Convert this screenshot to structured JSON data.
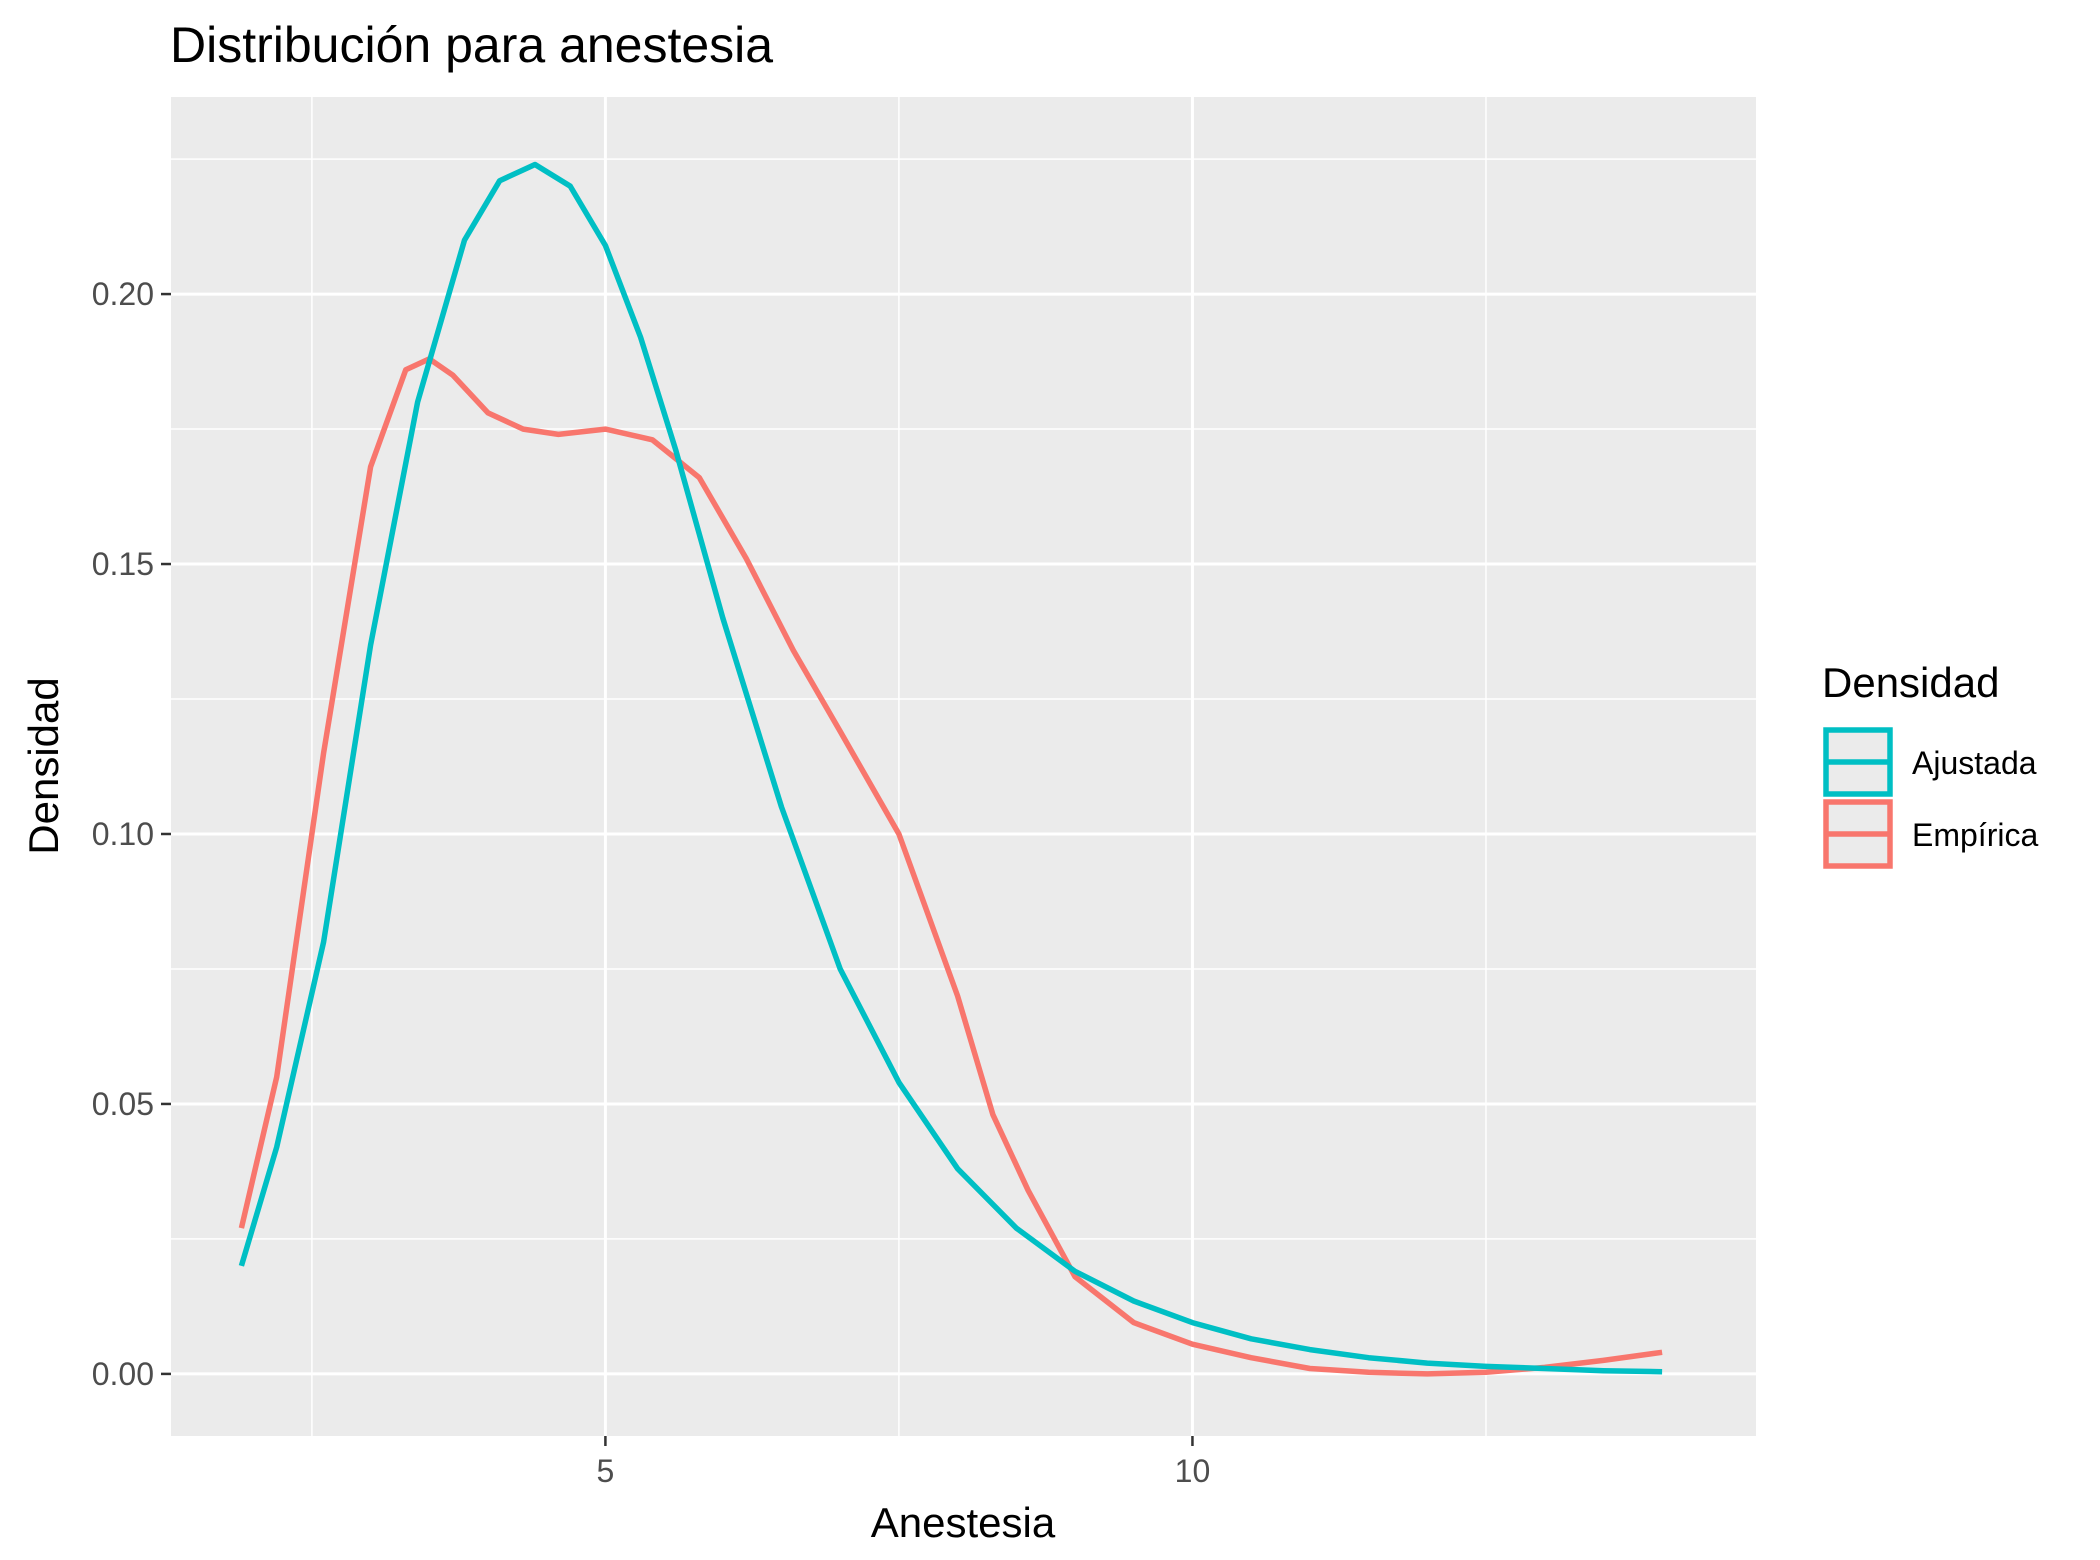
{
  "chart_data": {
    "type": "line",
    "title": "Distribución para anestesia",
    "xlabel": "Anestesia",
    "ylabel": "Densidad",
    "xlim": [
      1.3,
      14.8
    ],
    "ylim": [
      -0.0115,
      0.2365
    ],
    "x_ticks": [
      5,
      10
    ],
    "x_tick_labels": [
      "5",
      "10"
    ],
    "x_minor_ticks": [
      2.5,
      7.5,
      12.5
    ],
    "y_ticks": [
      0.0,
      0.05,
      0.1,
      0.15,
      0.2
    ],
    "y_tick_labels": [
      "0.00",
      "0.05",
      "0.10",
      "0.15",
      "0.20"
    ],
    "y_minor_ticks": [
      0.025,
      0.075,
      0.125,
      0.175,
      0.225
    ],
    "grid": true,
    "legend": {
      "title": "Densidad",
      "position": "right",
      "entries": [
        "Ajustada",
        "Empírica"
      ]
    },
    "series": [
      {
        "name": "Ajustada",
        "color": "#00BFC4",
        "x": [
          1.9,
          2.2,
          2.6,
          3.0,
          3.4,
          3.8,
          4.1,
          4.4,
          4.7,
          5.0,
          5.3,
          5.6,
          6.0,
          6.5,
          7.0,
          7.5,
          8.0,
          8.5,
          9.0,
          9.5,
          10.0,
          10.5,
          11.0,
          11.5,
          12.0,
          12.5,
          13.0,
          13.5,
          14.0
        ],
        "values": [
          0.02,
          0.042,
          0.08,
          0.135,
          0.18,
          0.21,
          0.221,
          0.224,
          0.22,
          0.209,
          0.192,
          0.171,
          0.14,
          0.105,
          0.075,
          0.054,
          0.038,
          0.027,
          0.019,
          0.0135,
          0.0095,
          0.0065,
          0.0045,
          0.003,
          0.002,
          0.0014,
          0.001,
          0.0006,
          0.0004
        ]
      },
      {
        "name": "Empírica",
        "color": "#F8766D",
        "x": [
          1.9,
          2.2,
          2.6,
          3.0,
          3.3,
          3.5,
          3.7,
          4.0,
          4.3,
          4.6,
          5.0,
          5.4,
          5.8,
          6.2,
          6.6,
          7.0,
          7.5,
          8.0,
          8.3,
          8.6,
          9.0,
          9.5,
          10.0,
          10.5,
          11.0,
          11.5,
          12.0,
          12.5,
          13.0,
          13.5,
          14.0
        ],
        "values": [
          0.027,
          0.055,
          0.115,
          0.168,
          0.186,
          0.188,
          0.185,
          0.178,
          0.175,
          0.174,
          0.175,
          0.173,
          0.166,
          0.151,
          0.134,
          0.119,
          0.1,
          0.07,
          0.048,
          0.034,
          0.018,
          0.0095,
          0.0055,
          0.003,
          0.001,
          0.0003,
          0.0,
          0.0003,
          0.0012,
          0.0025,
          0.004
        ]
      }
    ]
  }
}
